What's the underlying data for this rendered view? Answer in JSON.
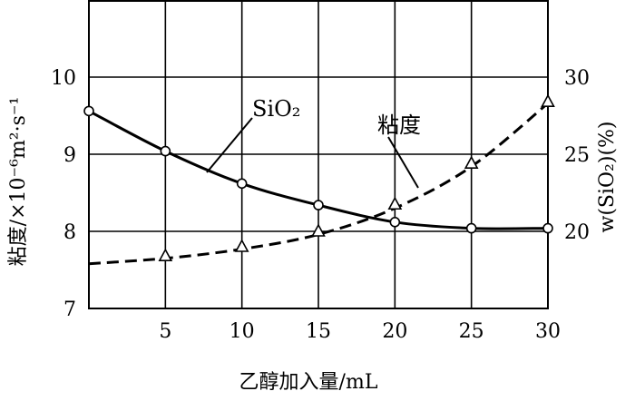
{
  "chart_data": {
    "type": "line",
    "xlabel": "乙醇加入量/mL",
    "ylabel_left": "粘度/×10⁻⁶m²·s⁻¹",
    "ylabel_right": "w(SiO₂)(%)",
    "x_ticks": [
      "5",
      "10",
      "15",
      "20",
      "25",
      "30"
    ],
    "y_left_ticks": [
      "7",
      "8",
      "9",
      "10"
    ],
    "y_right_ticks": [
      "20",
      "25",
      "30"
    ],
    "xlim": [
      0,
      30
    ],
    "ylim_left": [
      7,
      11
    ],
    "ylim_right": [
      15,
      35
    ],
    "grid": true,
    "series": [
      {
        "name": "SiO₂",
        "axis": "right",
        "style": "solid",
        "marker": "circle",
        "x": [
          0,
          5,
          10,
          15,
          20,
          25,
          30
        ],
        "y": [
          27.8,
          25.2,
          23.1,
          21.7,
          20.6,
          20.2,
          20.2
        ]
      },
      {
        "name": "粘度",
        "axis": "left",
        "style": "dashed",
        "marker": "triangle",
        "x": [
          5,
          10,
          15,
          20,
          25,
          30
        ],
        "y": [
          7.68,
          7.8,
          8.0,
          8.35,
          8.88,
          9.68
        ]
      }
    ],
    "curve_fits": {
      "viscosity_dashed": {
        "x": [
          0,
          5,
          10,
          15,
          20,
          25,
          30
        ],
        "y": [
          7.58,
          7.65,
          7.77,
          7.96,
          8.3,
          8.84,
          9.66
        ]
      }
    }
  }
}
